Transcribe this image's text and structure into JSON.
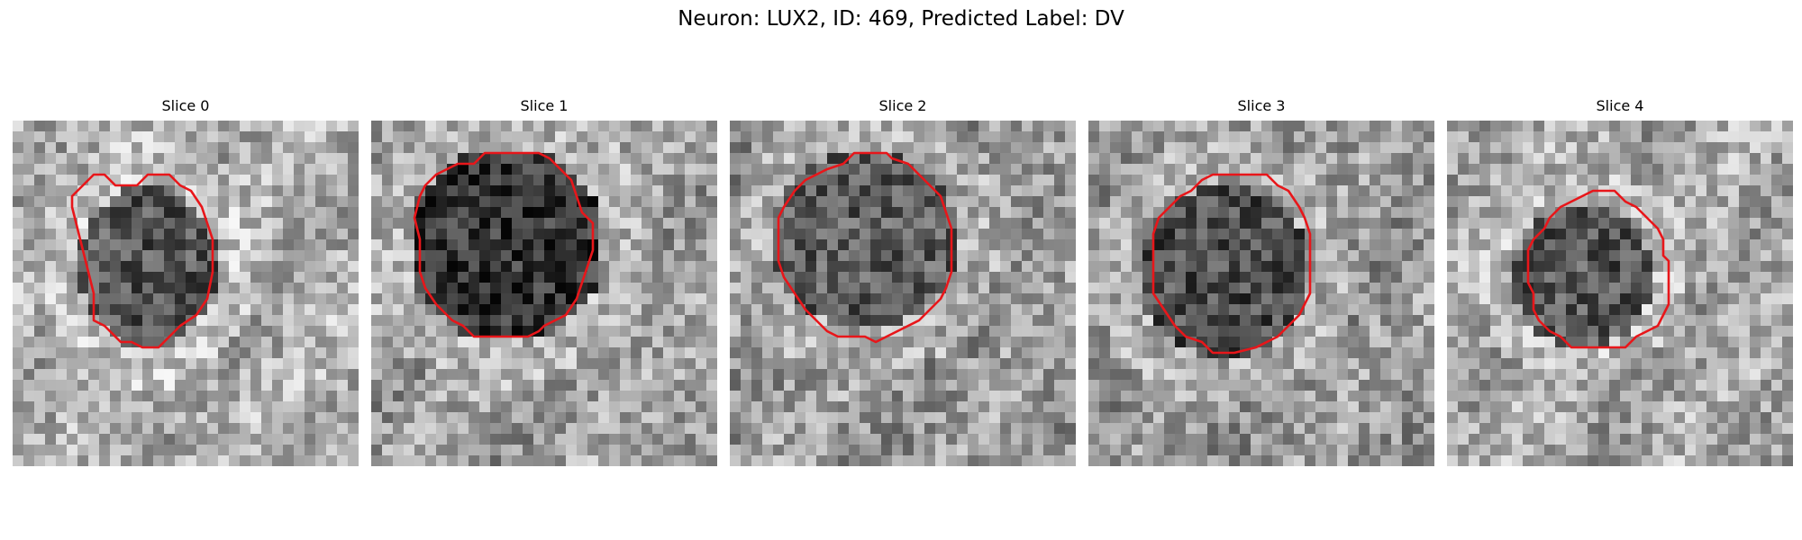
{
  "figure": {
    "title": "Neuron: LUX2, ID: 469, Predicted Label: DV"
  },
  "contour_color": "#e8161a",
  "panels": [
    {
      "title": "Slice 0"
    },
    {
      "title": "Slice 1"
    },
    {
      "title": "Slice 2"
    },
    {
      "title": "Slice 3"
    },
    {
      "title": "Slice 4"
    }
  ]
}
